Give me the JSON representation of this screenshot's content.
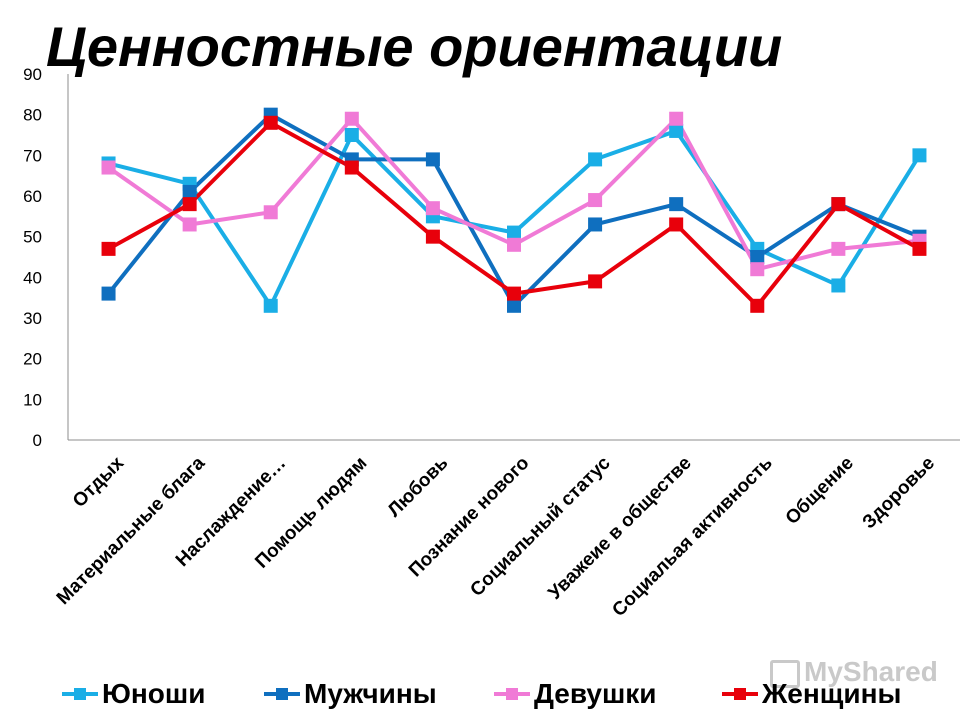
{
  "chart_data": {
    "type": "line",
    "title": "Ценностные ориентации",
    "categories": [
      "Отдых",
      "Материальные блага",
      "Наслаждение…",
      "Помощь людям",
      "Любовь",
      "Познание нового",
      "Социальный статус",
      "Уважеие в обществе",
      "Социальая активность",
      "Общение",
      "Здоровье"
    ],
    "ylim": [
      0,
      90
    ],
    "yticks": [
      0,
      10,
      20,
      30,
      40,
      50,
      60,
      70,
      80,
      90
    ],
    "grid": false,
    "legend_position": "bottom",
    "series": [
      {
        "name": "Юноши",
        "color": "#1aaee6",
        "values": [
          68,
          63,
          33,
          75,
          55,
          51,
          69,
          76,
          47,
          38,
          70
        ]
      },
      {
        "name": "Мужчины",
        "color": "#0f6fbf",
        "values": [
          36,
          61,
          80,
          69,
          69,
          33,
          53,
          58,
          45,
          58,
          50
        ]
      },
      {
        "name": "Девушки",
        "color": "#f07ad6",
        "values": [
          67,
          53,
          56,
          79,
          57,
          48,
          59,
          79,
          42,
          47,
          49
        ]
      },
      {
        "name": "Женщины",
        "color": "#e8000b",
        "values": [
          47,
          58,
          78,
          67,
          50,
          36,
          39,
          53,
          33,
          58,
          47
        ]
      }
    ]
  },
  "watermark": "MyShared"
}
